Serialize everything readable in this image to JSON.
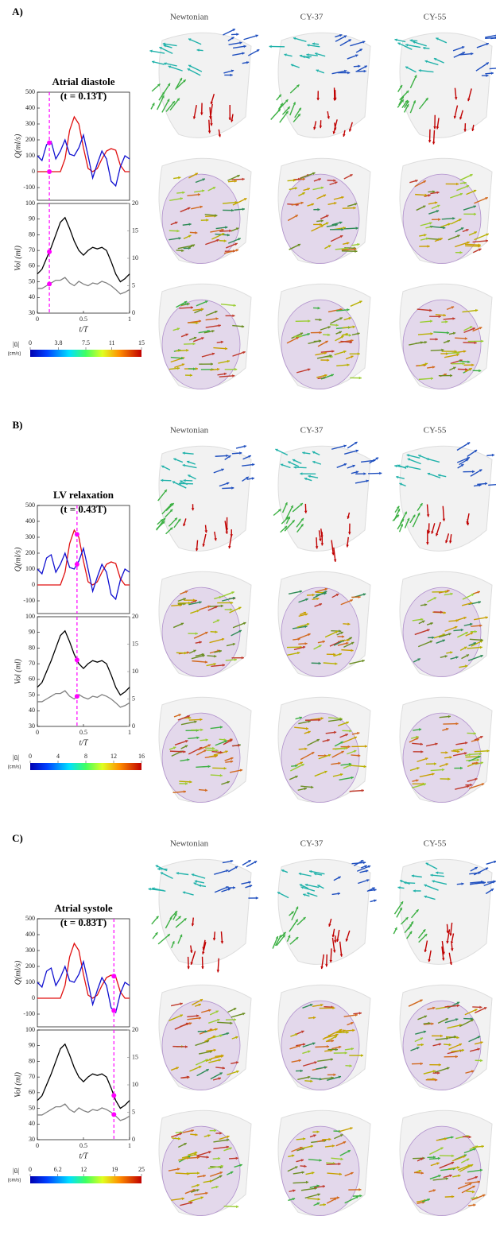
{
  "panels": [
    {
      "label": "A)",
      "title": "Atrial diastole",
      "subtitle": "(t = 0.13T)",
      "t": 0.13,
      "columns": [
        "Newtonian",
        "CY-37",
        "CY-55"
      ],
      "charts": [
        {
          "type": "line",
          "ylabel": "Q(ml/s)",
          "x": [
            0,
            0.05,
            0.1,
            0.15,
            0.2,
            0.25,
            0.3,
            0.35,
            0.4,
            0.45,
            0.5,
            0.55,
            0.6,
            0.65,
            0.7,
            0.75,
            0.8,
            0.85,
            0.9,
            0.95,
            1
          ],
          "xlim": [
            0,
            1
          ],
          "ylim": [
            -180,
            500
          ],
          "yticks": [
            -100,
            0,
            100,
            200,
            300,
            400,
            500
          ],
          "series": [
            {
              "color": "#e01010",
              "values": [
                0,
                0,
                0,
                0,
                0,
                0,
                80,
                260,
                345,
                300,
                150,
                20,
                0,
                20,
                80,
                130,
                145,
                135,
                40,
                0,
                0
              ]
            },
            {
              "color": "#1010d0",
              "values": [
                100,
                70,
                170,
                190,
                80,
                130,
                200,
                110,
                100,
                150,
                230,
                100,
                -40,
                50,
                130,
                80,
                -60,
                -90,
                30,
                100,
                80
              ]
            }
          ]
        },
        {
          "type": "line",
          "xlabel": "t/T",
          "ylabel": "Vol (ml)",
          "x": [
            0,
            0.05,
            0.1,
            0.15,
            0.2,
            0.25,
            0.3,
            0.35,
            0.4,
            0.45,
            0.5,
            0.55,
            0.6,
            0.65,
            0.7,
            0.75,
            0.8,
            0.85,
            0.9,
            0.95,
            1
          ],
          "xlim": [
            0,
            1
          ],
          "xticks": [
            0,
            0.5,
            1
          ],
          "ylim": [
            30,
            100
          ],
          "yticks": [
            30,
            40,
            50,
            60,
            70,
            80,
            90,
            100
          ],
          "y2lim": [
            0,
            20
          ],
          "y2ticks": [
            0,
            5,
            10,
            15,
            20
          ],
          "series": [
            {
              "color": "#000000",
              "values": [
                55,
                58,
                65,
                72,
                80,
                88,
                91,
                84,
                76,
                70,
                67,
                70,
                72,
                71,
                72,
                70,
                63,
                55,
                50,
                52,
                55
              ]
            },
            {
              "color": "#808080",
              "axis": "y2",
              "values": [
                4.5,
                4.5,
                5,
                5.5,
                6,
                6,
                6.5,
                5.5,
                5,
                5.8,
                5.3,
                5,
                5.5,
                5.3,
                5.8,
                5.5,
                5,
                4.3,
                3.5,
                3.8,
                4.3
              ]
            }
          ]
        }
      ],
      "colorbar": {
        "label": "|ū|",
        "unit": "(cm/s)",
        "lim": [
          0,
          15
        ],
        "ticks": [
          0,
          3.8,
          7.5,
          11,
          15
        ]
      }
    },
    {
      "label": "B)",
      "title": "LV relaxation",
      "subtitle": "(t = 0.43T)",
      "t": 0.43,
      "columns": [
        "Newtonian",
        "CY-37",
        "CY-55"
      ],
      "charts": [
        {
          "type": "line",
          "ylabel": "Q(ml/s)",
          "x": [
            0,
            0.05,
            0.1,
            0.15,
            0.2,
            0.25,
            0.3,
            0.35,
            0.4,
            0.45,
            0.5,
            0.55,
            0.6,
            0.65,
            0.7,
            0.75,
            0.8,
            0.85,
            0.9,
            0.95,
            1
          ],
          "xlim": [
            0,
            1
          ],
          "ylim": [
            -180,
            500
          ],
          "yticks": [
            -100,
            0,
            100,
            200,
            300,
            400,
            500
          ],
          "series": [
            {
              "color": "#e01010",
              "values": [
                0,
                0,
                0,
                0,
                0,
                0,
                80,
                260,
                345,
                300,
                150,
                20,
                0,
                20,
                80,
                130,
                145,
                135,
                40,
                0,
                0
              ]
            },
            {
              "color": "#1010d0",
              "values": [
                100,
                70,
                170,
                190,
                80,
                130,
                200,
                110,
                100,
                150,
                230,
                100,
                -40,
                50,
                130,
                80,
                -60,
                -90,
                30,
                100,
                80
              ]
            }
          ]
        },
        {
          "type": "line",
          "xlabel": "t/T",
          "ylabel": "Vol (ml)",
          "x": [
            0,
            0.05,
            0.1,
            0.15,
            0.2,
            0.25,
            0.3,
            0.35,
            0.4,
            0.45,
            0.5,
            0.55,
            0.6,
            0.65,
            0.7,
            0.75,
            0.8,
            0.85,
            0.9,
            0.95,
            1
          ],
          "xlim": [
            0,
            1
          ],
          "xticks": [
            0,
            0.5,
            1
          ],
          "ylim": [
            30,
            100
          ],
          "yticks": [
            30,
            40,
            50,
            60,
            70,
            80,
            90,
            100
          ],
          "y2lim": [
            0,
            20
          ],
          "y2ticks": [
            0,
            5,
            10,
            15,
            20
          ],
          "series": [
            {
              "color": "#000000",
              "values": [
                55,
                58,
                65,
                72,
                80,
                88,
                91,
                84,
                76,
                70,
                67,
                70,
                72,
                71,
                72,
                70,
                63,
                55,
                50,
                52,
                55
              ]
            },
            {
              "color": "#808080",
              "axis": "y2",
              "values": [
                4.5,
                4.5,
                5,
                5.5,
                6,
                6,
                6.5,
                5.5,
                5,
                5.8,
                5.3,
                5,
                5.5,
                5.3,
                5.8,
                5.5,
                5,
                4.3,
                3.5,
                3.8,
                4.3
              ]
            }
          ]
        }
      ],
      "colorbar": {
        "label": "|ū|",
        "unit": "(cm/s)",
        "lim": [
          0,
          16
        ],
        "ticks": [
          0,
          4,
          8,
          12,
          16
        ]
      }
    },
    {
      "label": "C)",
      "title": "Atrial systole",
      "subtitle": "(t = 0.83T)",
      "t": 0.83,
      "columns": [
        "Newtonian",
        "CY-37",
        "CY-55"
      ],
      "charts": [
        {
          "type": "line",
          "ylabel": "Q(ml/s)",
          "x": [
            0,
            0.05,
            0.1,
            0.15,
            0.2,
            0.25,
            0.3,
            0.35,
            0.4,
            0.45,
            0.5,
            0.55,
            0.6,
            0.65,
            0.7,
            0.75,
            0.8,
            0.85,
            0.9,
            0.95,
            1
          ],
          "xlim": [
            0,
            1
          ],
          "ylim": [
            -180,
            500
          ],
          "yticks": [
            -100,
            0,
            100,
            200,
            300,
            400,
            500
          ],
          "series": [
            {
              "color": "#e01010",
              "values": [
                0,
                0,
                0,
                0,
                0,
                0,
                80,
                260,
                345,
                300,
                150,
                20,
                0,
                20,
                80,
                130,
                145,
                135,
                40,
                0,
                0
              ]
            },
            {
              "color": "#1010d0",
              "values": [
                100,
                70,
                170,
                190,
                80,
                130,
                200,
                110,
                100,
                150,
                230,
                100,
                -40,
                50,
                130,
                80,
                -60,
                -90,
                30,
                100,
                80
              ]
            }
          ]
        },
        {
          "type": "line",
          "xlabel": "t/T",
          "ylabel": "Vol (ml)",
          "x": [
            0,
            0.05,
            0.1,
            0.15,
            0.2,
            0.25,
            0.3,
            0.35,
            0.4,
            0.45,
            0.5,
            0.55,
            0.6,
            0.65,
            0.7,
            0.75,
            0.8,
            0.85,
            0.9,
            0.95,
            1
          ],
          "xlim": [
            0,
            1
          ],
          "xticks": [
            0,
            0.5,
            1
          ],
          "ylim": [
            30,
            100
          ],
          "yticks": [
            30,
            40,
            50,
            60,
            70,
            80,
            90,
            100
          ],
          "y2lim": [
            0,
            20
          ],
          "y2ticks": [
            0,
            5,
            10,
            15,
            20
          ],
          "series": [
            {
              "color": "#000000",
              "values": [
                55,
                58,
                65,
                72,
                80,
                88,
                91,
                84,
                76,
                70,
                67,
                70,
                72,
                71,
                72,
                70,
                63,
                55,
                50,
                52,
                55
              ]
            },
            {
              "color": "#808080",
              "axis": "y2",
              "values": [
                4.5,
                4.5,
                5,
                5.5,
                6,
                6,
                6.5,
                5.5,
                5,
                5.8,
                5.3,
                5,
                5.5,
                5.3,
                5.8,
                5.5,
                5,
                4.3,
                3.5,
                3.8,
                4.3
              ]
            }
          ]
        }
      ],
      "colorbar": {
        "label": "|ū|",
        "unit": "(cm/s)",
        "lim": [
          0,
          25
        ],
        "ticks": [
          0,
          6.2,
          12,
          19,
          25
        ]
      }
    }
  ]
}
